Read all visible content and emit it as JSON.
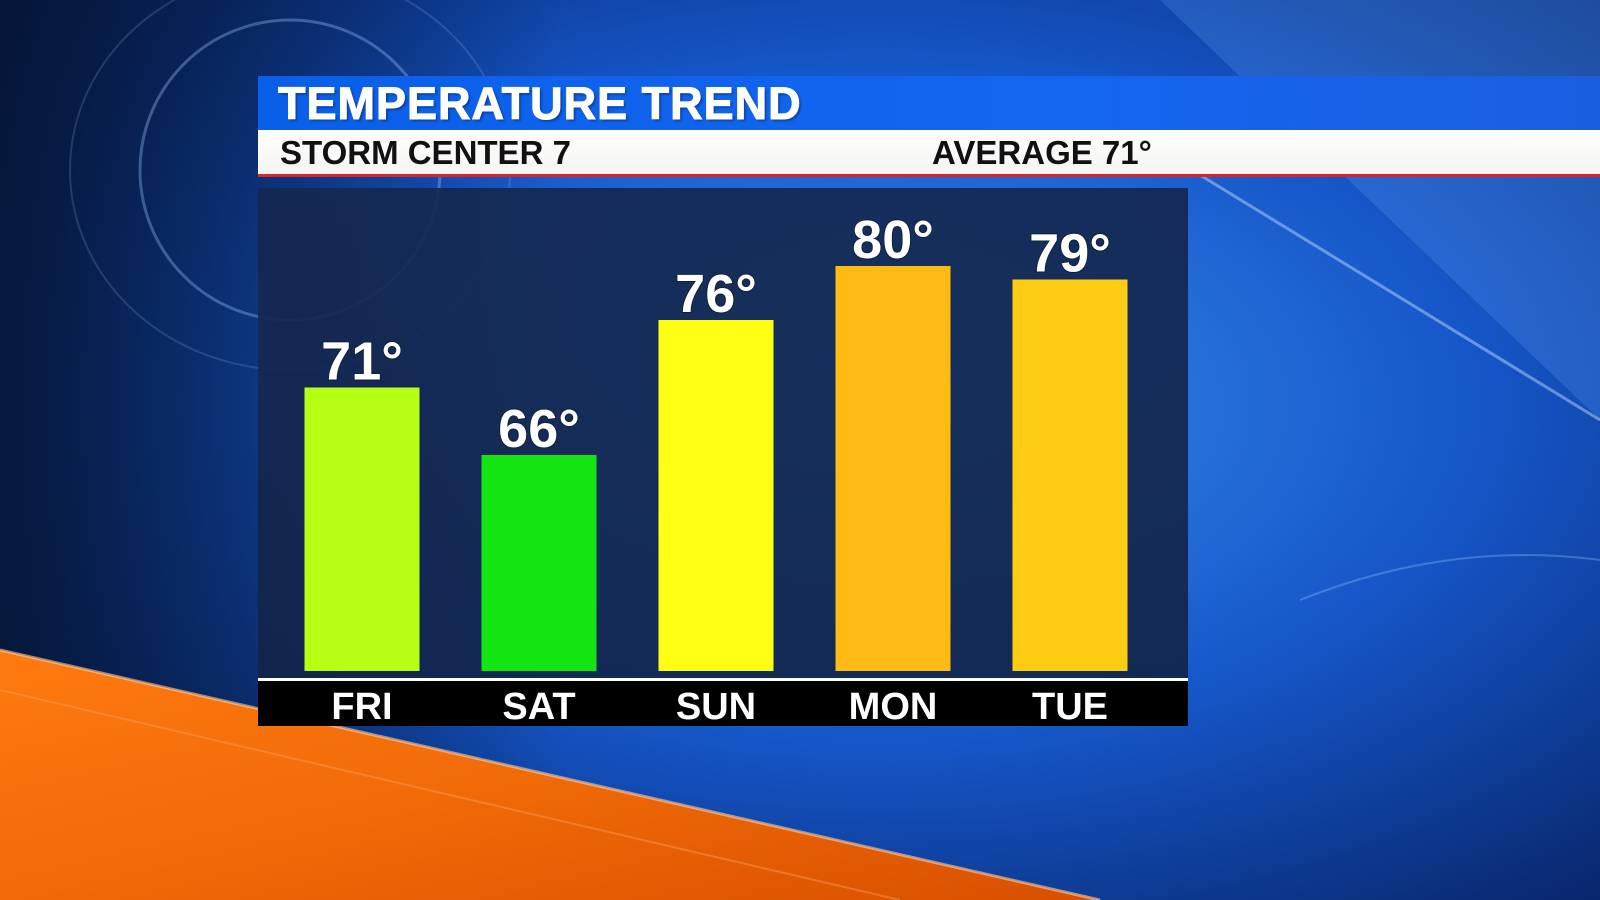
{
  "header": {
    "title": "TEMPERATURE TREND",
    "station": "STORM CENTER 7",
    "average": "AVERAGE 71°"
  },
  "chart_data": {
    "type": "bar",
    "title": "TEMPERATURE TREND",
    "categories": [
      "FRI",
      "SAT",
      "SUN",
      "MON",
      "TUE"
    ],
    "values": [
      71,
      66,
      76,
      80,
      79
    ],
    "value_labels": [
      "71°",
      "66°",
      "76°",
      "80°",
      "79°"
    ],
    "bar_colors": [
      "#b5ff14",
      "#12e512",
      "#ffff14",
      "#ffbb14",
      "#ffcc14"
    ],
    "xlabel": "",
    "ylabel": "",
    "grid": false,
    "legend": "none"
  }
}
